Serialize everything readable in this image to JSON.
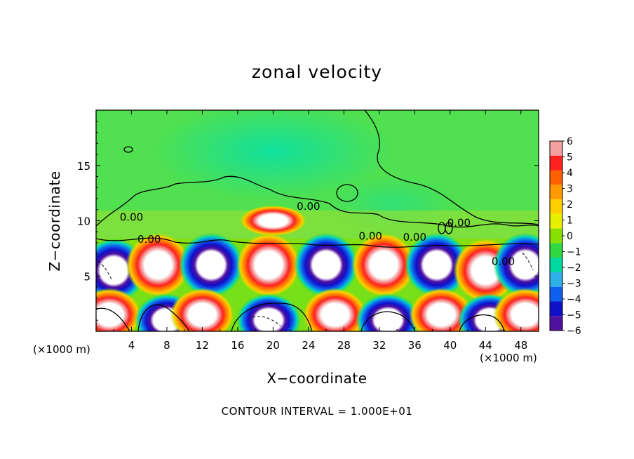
{
  "chart_data": {
    "type": "heatmap",
    "title": "zonal velocity",
    "xlabel": "X−coordinate",
    "ylabel": "Z−coordinate",
    "x_unit_label": "(×1000 m)",
    "x_ticks": [
      "4",
      "8",
      "12",
      "16",
      "20",
      "24",
      "28",
      "32",
      "36",
      "40",
      "44",
      "48"
    ],
    "y_ticks": [
      "5",
      "10",
      "15"
    ],
    "xlim": [
      0,
      50
    ],
    "ylim": [
      0,
      20
    ],
    "colorbar": {
      "ticks": [
        "6",
        "5",
        "4",
        "3",
        "2",
        "1",
        "0",
        "−1",
        "−2",
        "−3",
        "−4",
        "−5",
        "−6"
      ],
      "range": [
        -6,
        6
      ],
      "colors": [
        "#f4a0a0",
        "#ff2020",
        "#ff6000",
        "#ff9a00",
        "#ffd000",
        "#e8f000",
        "#88e000",
        "#30d840",
        "#00d8a0",
        "#30b0e8",
        "#1060f0",
        "#1010c8",
        "#5010a0"
      ]
    },
    "contour_labels": [
      "0.00",
      "0.00",
      "0.00",
      "0.00",
      "0.00",
      "0.00",
      "0.00"
    ],
    "contour_interval_text": "CONTOUR INTERVAL = 1.000E+01",
    "cells_lower": [
      {
        "x": 2,
        "z": 5.5,
        "sign": "neg"
      },
      {
        "x": 7,
        "z": 6,
        "sign": "pos"
      },
      {
        "x": 13,
        "z": 6,
        "sign": "neg"
      },
      {
        "x": 19.5,
        "z": 6,
        "sign": "pos"
      },
      {
        "x": 26,
        "z": 6,
        "sign": "neg"
      },
      {
        "x": 32.5,
        "z": 6,
        "sign": "pos"
      },
      {
        "x": 38.5,
        "z": 6,
        "sign": "neg"
      },
      {
        "x": 44,
        "z": 5.5,
        "sign": "pos"
      },
      {
        "x": 48.5,
        "z": 6,
        "sign": "neg"
      },
      {
        "x": 1.5,
        "z": 1.5,
        "sign": "pos"
      },
      {
        "x": 8,
        "z": 1,
        "sign": "neg"
      },
      {
        "x": 12,
        "z": 1.5,
        "sign": "pos"
      },
      {
        "x": 19.5,
        "z": 1,
        "sign": "neg"
      },
      {
        "x": 27,
        "z": 1.5,
        "sign": "pos"
      },
      {
        "x": 33,
        "z": 1,
        "sign": "neg"
      },
      {
        "x": 39,
        "z": 1.5,
        "sign": "pos"
      },
      {
        "x": 44.5,
        "z": 1,
        "sign": "neg"
      },
      {
        "x": 48.5,
        "z": 1.5,
        "sign": "pos"
      },
      {
        "x": 20,
        "z": 10,
        "sign": "pos"
      }
    ]
  }
}
